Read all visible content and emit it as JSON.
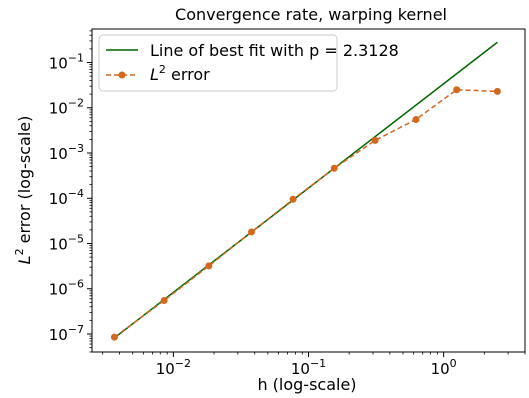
{
  "chart_data": {
    "type": "line",
    "title": "Convergence rate, warping kernel",
    "xlabel": "h (log-scale)",
    "ylabel_base": "L",
    "ylabel_sup": "2",
    "ylabel_rest": " error (log-scale)",
    "x_scale": "log",
    "y_scale": "log",
    "xlim": [
      0.0025,
      4.0
    ],
    "ylim": [
      4e-08,
      0.55
    ],
    "x_ticks": [
      {
        "value": 0.01,
        "base": "10",
        "exp": "−2"
      },
      {
        "value": 0.1,
        "base": "10",
        "exp": "−1"
      },
      {
        "value": 1,
        "base": "10",
        "exp": "0"
      }
    ],
    "y_ticks": [
      {
        "value": 1e-07,
        "base": "10",
        "exp": "−7"
      },
      {
        "value": 1e-06,
        "base": "10",
        "exp": "−6"
      },
      {
        "value": 1e-05,
        "base": "10",
        "exp": "−5"
      },
      {
        "value": 0.0001,
        "base": "10",
        "exp": "−4"
      },
      {
        "value": 0.001,
        "base": "10",
        "exp": "−3"
      },
      {
        "value": 0.01,
        "base": "10",
        "exp": "−2"
      },
      {
        "value": 0.1,
        "base": "10",
        "exp": "−1"
      }
    ],
    "grid": false,
    "legend_position": "top-left",
    "series": [
      {
        "name": "Line of best fit with p = 2.3128",
        "style": "solid",
        "color": "#006400",
        "x": [
          0.003662,
          2.5
        ],
        "y": [
          8.2e-08,
          0.28
        ]
      },
      {
        "name_base": "L",
        "name_sup": "2",
        "name_rest": " error",
        "style": "dashed",
        "marker": "circle",
        "color": "#d2691e",
        "x": [
          0.003662,
          0.008545,
          0.01831,
          0.03784,
          0.07691,
          0.155,
          0.3113,
          0.6238,
          1.249,
          2.499
        ],
        "y": [
          8.5e-08,
          5.5e-07,
          3.2e-06,
          1.8e-05,
          9.5e-05,
          0.00046,
          0.0019,
          0.0055,
          0.025,
          0.023
        ]
      }
    ]
  }
}
